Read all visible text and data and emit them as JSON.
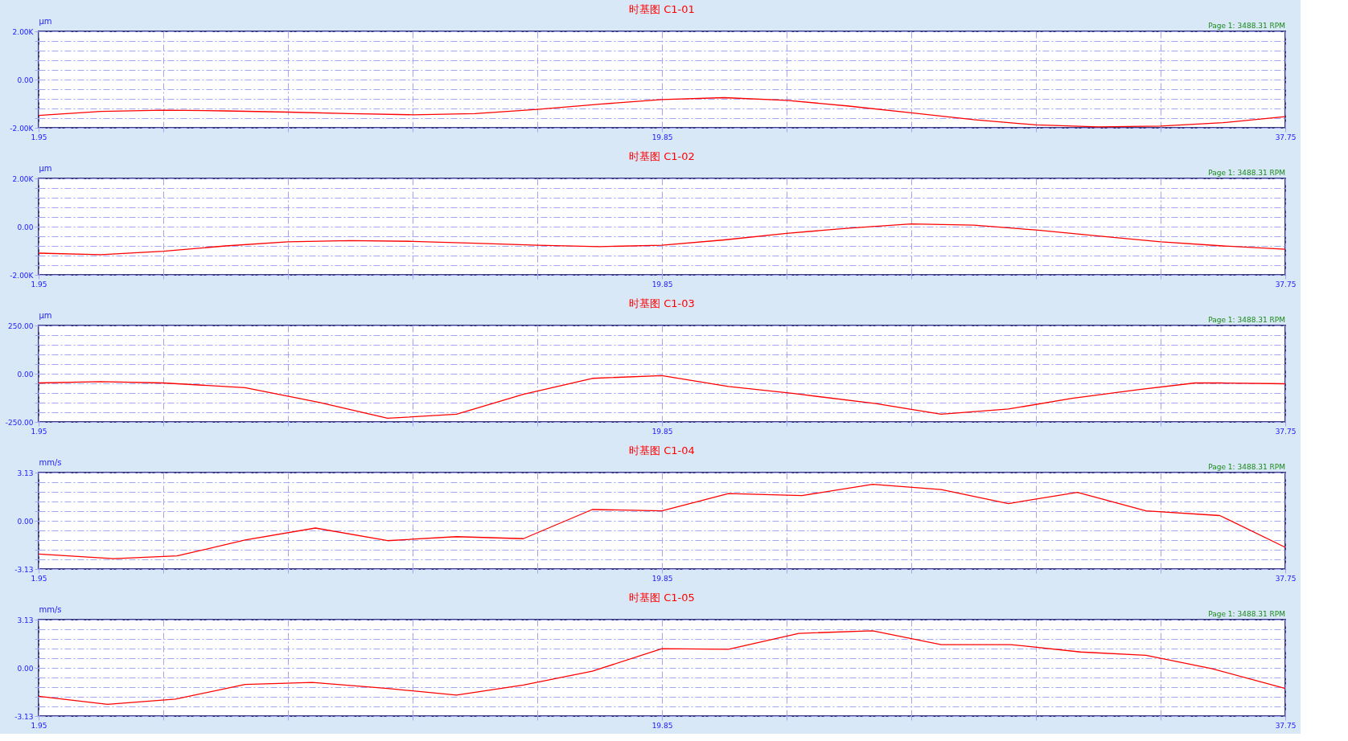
{
  "chart_data": [
    {
      "type": "line",
      "title": "时基图 C1-01",
      "ylabel": "μm",
      "annotations": [
        "Page 1: 3488.31 RPM"
      ],
      "grid": true,
      "line_style": "solid",
      "xlim": [
        1.95,
        37.75
      ],
      "ylim": [
        -2000,
        2000
      ],
      "xticks": [
        {
          "value": 1.95,
          "label": "1.95"
        },
        {
          "value": 5.53,
          "label": null
        },
        {
          "value": 9.11,
          "label": null
        },
        {
          "value": 12.69,
          "label": null
        },
        {
          "value": 16.27,
          "label": null
        },
        {
          "value": 19.85,
          "label": "19.85"
        },
        {
          "value": 23.43,
          "label": null
        },
        {
          "value": 27.01,
          "label": null
        },
        {
          "value": 30.59,
          "label": null
        },
        {
          "value": 34.17,
          "label": null
        },
        {
          "value": 37.75,
          "label": "37.75"
        }
      ],
      "yticks": [
        {
          "value": -2000,
          "label": "-2.00K"
        },
        {
          "value": -1600,
          "label": null
        },
        {
          "value": -1200,
          "label": null
        },
        {
          "value": -800,
          "label": null
        },
        {
          "value": -400,
          "label": null
        },
        {
          "value": 0,
          "label": "0.00"
        },
        {
          "value": 400,
          "label": null
        },
        {
          "value": 800,
          "label": null
        },
        {
          "value": 1200,
          "label": null
        },
        {
          "value": 1600,
          "label": null
        },
        {
          "value": 2000,
          "label": "2.00K"
        }
      ],
      "x": [
        1.95,
        3.74,
        5.53,
        7.32,
        9.11,
        10.9,
        12.69,
        14.48,
        16.27,
        18.06,
        19.85,
        21.64,
        23.43,
        25.22,
        27.01,
        28.8,
        30.59,
        32.38,
        34.17,
        35.96,
        37.75
      ],
      "series": [
        {
          "color": "#ff0000",
          "values": [
            -1490,
            -1320,
            -1270,
            -1300,
            -1350,
            -1410,
            -1460,
            -1410,
            -1240,
            -1020,
            -830,
            -750,
            -860,
            -1100,
            -1380,
            -1660,
            -1880,
            -1960,
            -1930,
            -1790,
            -1540
          ]
        }
      ]
    },
    {
      "type": "line",
      "title": "时基图 C1-02",
      "ylabel": "μm",
      "annotations": [
        "Page 1: 3488.31 RPM"
      ],
      "grid": true,
      "line_style": "solid",
      "xlim": [
        1.95,
        37.75
      ],
      "ylim": [
        -2000,
        2000
      ],
      "xticks": [
        {
          "value": 1.95,
          "label": "1.95"
        },
        {
          "value": 5.53,
          "label": null
        },
        {
          "value": 9.11,
          "label": null
        },
        {
          "value": 12.69,
          "label": null
        },
        {
          "value": 16.27,
          "label": null
        },
        {
          "value": 19.85,
          "label": "19.85"
        },
        {
          "value": 23.43,
          "label": null
        },
        {
          "value": 27.01,
          "label": null
        },
        {
          "value": 30.59,
          "label": null
        },
        {
          "value": 34.17,
          "label": null
        },
        {
          "value": 37.75,
          "label": "37.75"
        }
      ],
      "yticks": [
        {
          "value": -2000,
          "label": "-2.00K"
        },
        {
          "value": -1600,
          "label": null
        },
        {
          "value": -1200,
          "label": null
        },
        {
          "value": -800,
          "label": null
        },
        {
          "value": -400,
          "label": null
        },
        {
          "value": 0,
          "label": "0.00"
        },
        {
          "value": 400,
          "label": null
        },
        {
          "value": 800,
          "label": null
        },
        {
          "value": 1200,
          "label": null
        },
        {
          "value": 1600,
          "label": null
        },
        {
          "value": 2000,
          "label": "2.00K"
        }
      ],
      "x": [
        1.95,
        3.74,
        5.53,
        7.32,
        9.11,
        10.9,
        12.69,
        14.48,
        16.27,
        18.06,
        19.85,
        21.64,
        23.43,
        25.22,
        27.01,
        28.8,
        30.59,
        32.38,
        34.17,
        35.96,
        37.75
      ],
      "series": [
        {
          "color": "#ff0000",
          "values": [
            -1100,
            -1160,
            -1020,
            -800,
            -630,
            -580,
            -610,
            -690,
            -770,
            -830,
            -770,
            -550,
            -280,
            -60,
            110,
            60,
            -140,
            -390,
            -630,
            -800,
            -940
          ]
        }
      ]
    },
    {
      "type": "line",
      "title": "时基图 C1-03",
      "ylabel": "μm",
      "annotations": [
        "Page 1: 3488.31 RPM"
      ],
      "grid": true,
      "line_style": "solid",
      "xlim": [
        1.95,
        37.75
      ],
      "ylim": [
        -250,
        250
      ],
      "xticks": [
        {
          "value": 1.95,
          "label": "1.95"
        },
        {
          "value": 5.53,
          "label": null
        },
        {
          "value": 9.11,
          "label": null
        },
        {
          "value": 12.69,
          "label": null
        },
        {
          "value": 16.27,
          "label": null
        },
        {
          "value": 19.85,
          "label": "19.85"
        },
        {
          "value": 23.43,
          "label": null
        },
        {
          "value": 27.01,
          "label": null
        },
        {
          "value": 30.59,
          "label": null
        },
        {
          "value": 34.17,
          "label": null
        },
        {
          "value": 37.75,
          "label": "37.75"
        }
      ],
      "yticks": [
        {
          "value": -250,
          "label": "-250.00"
        },
        {
          "value": -200,
          "label": null
        },
        {
          "value": -150,
          "label": null
        },
        {
          "value": -100,
          "label": null
        },
        {
          "value": -50,
          "label": null
        },
        {
          "value": 0,
          "label": "0.00"
        },
        {
          "value": 50,
          "label": null
        },
        {
          "value": 100,
          "label": null
        },
        {
          "value": 150,
          "label": null
        },
        {
          "value": 200,
          "label": null
        },
        {
          "value": 250,
          "label": "250.00"
        }
      ],
      "x": [
        1.95,
        3.74,
        5.53,
        7.88,
        10.0,
        11.97,
        13.95,
        15.87,
        17.85,
        19.85,
        21.76,
        23.64,
        25.99,
        27.87,
        29.8,
        31.63,
        33.52,
        35.16,
        35.87,
        37.75
      ],
      "series": [
        {
          "color": "#ff0000",
          "values": [
            -48,
            -41,
            -48,
            -72,
            -148,
            -231,
            -210,
            -107,
            -24,
            -10,
            -66,
            -103,
            -155,
            -210,
            -183,
            -128,
            -83,
            -48,
            -48,
            -52
          ]
        }
      ]
    },
    {
      "type": "line",
      "title": "时基图 C1-04",
      "ylabel": "mm/s",
      "annotations": [
        "Page 1: 3488.31 RPM"
      ],
      "grid": true,
      "line_style": "solid",
      "xlim": [
        1.95,
        37.75
      ],
      "ylim": [
        -3.13,
        3.13
      ],
      "xticks": [
        {
          "value": 1.95,
          "label": "1.95"
        },
        {
          "value": 5.53,
          "label": null
        },
        {
          "value": 9.11,
          "label": null
        },
        {
          "value": 12.69,
          "label": null
        },
        {
          "value": 16.27,
          "label": null
        },
        {
          "value": 19.85,
          "label": "19.85"
        },
        {
          "value": 23.43,
          "label": null
        },
        {
          "value": 27.01,
          "label": null
        },
        {
          "value": 30.59,
          "label": null
        },
        {
          "value": 34.17,
          "label": null
        },
        {
          "value": 37.75,
          "label": "37.75"
        }
      ],
      "yticks": [
        {
          "value": -3.13,
          "label": "-3.13"
        },
        {
          "value": -2.504,
          "label": null
        },
        {
          "value": -1.878,
          "label": null
        },
        {
          "value": -1.252,
          "label": null
        },
        {
          "value": -0.626,
          "label": null
        },
        {
          "value": 0,
          "label": "0.00"
        },
        {
          "value": 0.626,
          "label": null
        },
        {
          "value": 1.252,
          "label": null
        },
        {
          "value": 1.878,
          "label": null
        },
        {
          "value": 2.504,
          "label": null
        },
        {
          "value": 3.13,
          "label": "3.13"
        }
      ],
      "x": [
        1.95,
        4.11,
        5.93,
        7.88,
        9.9,
        11.97,
        13.95,
        15.87,
        17.85,
        19.85,
        21.76,
        23.87,
        25.9,
        27.87,
        29.8,
        31.78,
        33.75,
        35.87,
        37.75
      ],
      "series": [
        {
          "color": "#ff0000",
          "values": [
            -2.16,
            -2.46,
            -2.28,
            -1.25,
            -0.47,
            -1.29,
            -1.03,
            -1.16,
            0.73,
            0.65,
            1.77,
            1.64,
            2.37,
            2.03,
            1.12,
            1.85,
            0.65,
            0.34,
            -1.72
          ]
        }
      ]
    },
    {
      "type": "line",
      "title": "时基图 C1-05",
      "ylabel": "mm/s",
      "annotations": [
        "Page 1: 3488.31 RPM"
      ],
      "grid": true,
      "line_style": "solid",
      "xlim": [
        1.95,
        37.75
      ],
      "ylim": [
        -3.13,
        3.13
      ],
      "xticks": [
        {
          "value": 1.95,
          "label": "1.95"
        },
        {
          "value": 5.53,
          "label": null
        },
        {
          "value": 9.11,
          "label": null
        },
        {
          "value": 12.69,
          "label": null
        },
        {
          "value": 16.27,
          "label": null
        },
        {
          "value": 19.85,
          "label": "19.85"
        },
        {
          "value": 23.43,
          "label": null
        },
        {
          "value": 27.01,
          "label": null
        },
        {
          "value": 30.59,
          "label": null
        },
        {
          "value": 34.17,
          "label": null
        },
        {
          "value": 37.75,
          "label": "37.75"
        }
      ],
      "yticks": [
        {
          "value": -3.13,
          "label": "-3.13"
        },
        {
          "value": -2.504,
          "label": null
        },
        {
          "value": -1.878,
          "label": null
        },
        {
          "value": -1.252,
          "label": null
        },
        {
          "value": -0.626,
          "label": null
        },
        {
          "value": 0,
          "label": "0.00"
        },
        {
          "value": 0.626,
          "label": null
        },
        {
          "value": 1.252,
          "label": null
        },
        {
          "value": 1.878,
          "label": null
        },
        {
          "value": 2.504,
          "label": null
        },
        {
          "value": 3.13,
          "label": "3.13"
        }
      ],
      "x": [
        1.95,
        3.93,
        5.88,
        7.88,
        9.81,
        11.97,
        13.95,
        15.87,
        17.85,
        19.85,
        21.76,
        23.78,
        25.9,
        27.87,
        29.87,
        31.87,
        33.75,
        35.63,
        37.75
      ],
      "series": [
        {
          "color": "#ff0000",
          "values": [
            -1.85,
            -2.37,
            -2.03,
            -1.08,
            -0.95,
            -1.34,
            -1.77,
            -1.12,
            -0.22,
            1.25,
            1.21,
            2.24,
            2.41,
            1.51,
            1.51,
            1.03,
            0.82,
            -0.04,
            -1.34
          ]
        }
      ]
    }
  ]
}
